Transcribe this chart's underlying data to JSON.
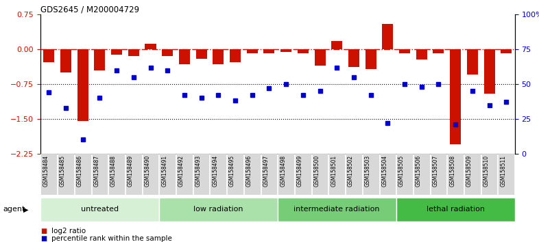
{
  "title": "GDS2645 / M200004729",
  "samples": [
    "GSM158484",
    "GSM158485",
    "GSM158486",
    "GSM158487",
    "GSM158488",
    "GSM158489",
    "GSM158490",
    "GSM158491",
    "GSM158492",
    "GSM158493",
    "GSM158494",
    "GSM158495",
    "GSM158496",
    "GSM158497",
    "GSM158498",
    "GSM158499",
    "GSM158500",
    "GSM158501",
    "GSM158502",
    "GSM158503",
    "GSM158504",
    "GSM158505",
    "GSM158506",
    "GSM158507",
    "GSM158508",
    "GSM158509",
    "GSM158510",
    "GSM158511"
  ],
  "log2_ratio": [
    -0.28,
    -0.5,
    -1.55,
    -0.45,
    -0.12,
    -0.15,
    0.12,
    -0.15,
    -0.32,
    -0.2,
    -0.32,
    -0.28,
    -0.08,
    -0.08,
    -0.05,
    -0.08,
    -0.35,
    0.18,
    -0.38,
    -0.42,
    0.55,
    -0.08,
    -0.22,
    -0.08,
    -2.05,
    -0.55,
    -0.95,
    -0.08
  ],
  "percentile_rank": [
    44,
    33,
    10,
    40,
    60,
    55,
    62,
    60,
    42,
    40,
    42,
    38,
    42,
    47,
    50,
    42,
    45,
    62,
    55,
    42,
    22,
    50,
    48,
    50,
    21,
    45,
    35,
    37
  ],
  "groups": [
    {
      "label": "untreated",
      "start": 0,
      "end": 7,
      "color": "#d5f0d5"
    },
    {
      "label": "low radiation",
      "start": 7,
      "end": 14,
      "color": "#aae0aa"
    },
    {
      "label": "intermediate radiation",
      "start": 14,
      "end": 21,
      "color": "#77cc77"
    },
    {
      "label": "lethal radiation",
      "start": 21,
      "end": 28,
      "color": "#44bb44"
    }
  ],
  "bar_color": "#cc1100",
  "dot_color": "#0000cc",
  "ylim_left": [
    -2.25,
    0.75
  ],
  "ylim_right": [
    0,
    100
  ],
  "yticks_left": [
    -2.25,
    -1.5,
    -0.75,
    0,
    0.75
  ],
  "yticks_right": [
    0,
    25,
    50,
    75,
    100
  ],
  "ytick_labels_right": [
    "0",
    "25",
    "50",
    "75",
    "100%"
  ],
  "hline_y": 0,
  "dotted_lines": [
    -0.75,
    -1.5
  ],
  "agent_label": "agent"
}
